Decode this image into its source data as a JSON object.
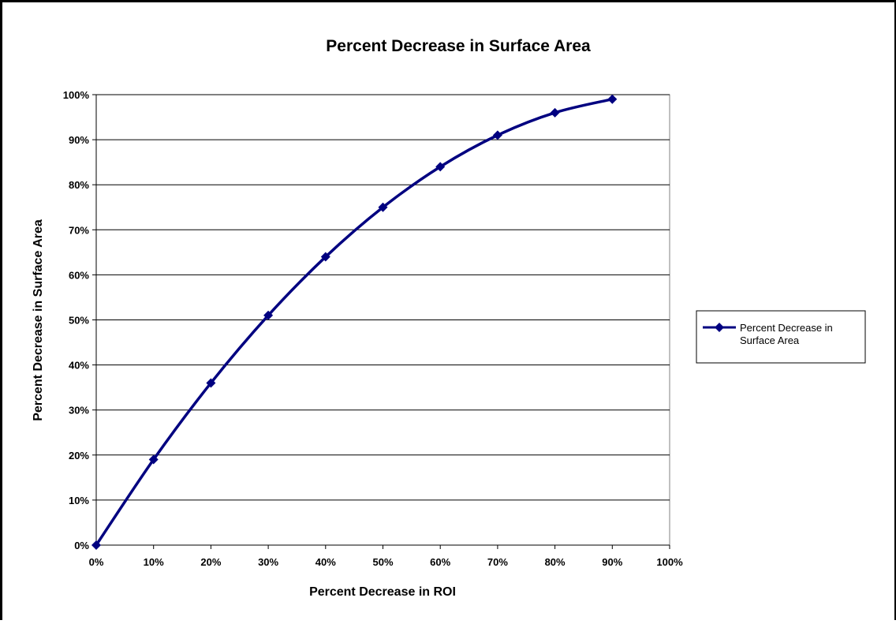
{
  "chart_data": {
    "type": "line",
    "title": "Percent Decrease in Surface Area",
    "xlabel": "Percent Decrease in ROI",
    "ylabel": "Percent Decrease in Surface Area",
    "x": [
      0,
      10,
      20,
      30,
      40,
      50,
      60,
      70,
      80,
      90
    ],
    "xlim": [
      0,
      100
    ],
    "ylim": [
      0,
      100
    ],
    "x_ticks": [
      "0%",
      "10%",
      "20%",
      "30%",
      "40%",
      "50%",
      "60%",
      "70%",
      "80%",
      "90%",
      "100%"
    ],
    "y_ticks": [
      "0%",
      "10%",
      "20%",
      "30%",
      "40%",
      "50%",
      "60%",
      "70%",
      "80%",
      "90%",
      "100%"
    ],
    "series": [
      {
        "name": "Percent Decrease in Surface Area",
        "values": [
          0,
          19,
          36,
          51,
          64,
          75,
          84,
          91,
          96,
          99
        ],
        "color": "#000080",
        "marker": "diamond",
        "smoothed": true
      }
    ],
    "grid": "horizontal",
    "legend_position": "right"
  }
}
